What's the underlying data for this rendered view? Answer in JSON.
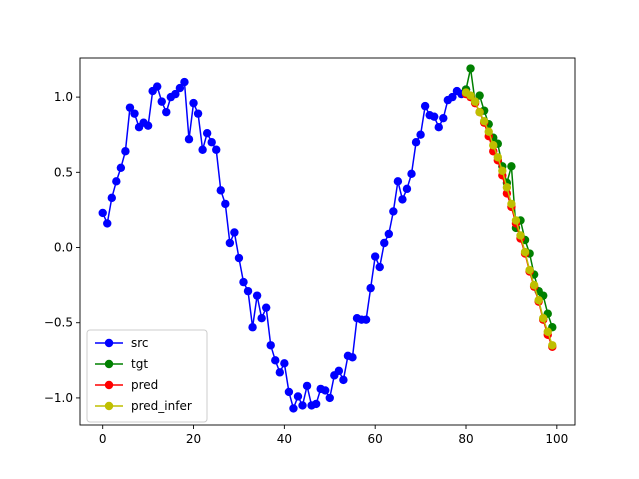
{
  "chart_data": {
    "type": "line",
    "title": "",
    "xlabel": "",
    "ylabel": "",
    "xlim": [
      -5,
      104
    ],
    "ylim": [
      -1.18,
      1.26
    ],
    "xticks": [
      0,
      20,
      40,
      60,
      80,
      100
    ],
    "yticks": [
      -1.0,
      -0.5,
      0.0,
      0.5,
      1.0
    ],
    "xtick_labels": [
      "0",
      "20",
      "40",
      "60",
      "80",
      "100"
    ],
    "ytick_labels": [
      "−1.0",
      "−0.5",
      "0.0",
      "0.5",
      "1.0"
    ],
    "grid": false,
    "legend_position": "lower-left",
    "series": [
      {
        "name": "src",
        "color": "#0000ff",
        "x": [
          0,
          1,
          2,
          3,
          4,
          5,
          6,
          7,
          8,
          9,
          10,
          11,
          12,
          13,
          14,
          15,
          16,
          17,
          18,
          19,
          20,
          21,
          22,
          23,
          24,
          25,
          26,
          27,
          28,
          29,
          30,
          31,
          32,
          33,
          34,
          35,
          36,
          37,
          38,
          39,
          40,
          41,
          42,
          43,
          44,
          45,
          46,
          47,
          48,
          49,
          50,
          51,
          52,
          53,
          54,
          55,
          56,
          57,
          58,
          59,
          60,
          61,
          62,
          63,
          64,
          65,
          66,
          67,
          68,
          69,
          70,
          71,
          72,
          73,
          74,
          75,
          76,
          77,
          78,
          79,
          80
        ],
        "y": [
          0.23,
          0.16,
          0.33,
          0.44,
          0.53,
          0.64,
          0.93,
          0.89,
          0.8,
          0.83,
          0.81,
          1.04,
          1.07,
          0.97,
          0.9,
          1.0,
          1.02,
          1.06,
          1.1,
          0.72,
          0.96,
          0.89,
          0.65,
          0.76,
          0.7,
          0.65,
          0.38,
          0.29,
          0.03,
          0.1,
          -0.07,
          -0.23,
          -0.29,
          -0.53,
          -0.32,
          -0.47,
          -0.4,
          -0.65,
          -0.75,
          -0.83,
          -0.77,
          -0.96,
          -1.07,
          -0.99,
          -1.05,
          -0.92,
          -1.05,
          -1.04,
          -0.94,
          -0.95,
          -1.0,
          -0.85,
          -0.82,
          -0.88,
          -0.72,
          -0.73,
          -0.47,
          -0.48,
          -0.48,
          -0.27,
          -0.06,
          -0.13,
          0.03,
          0.09,
          0.24,
          0.44,
          0.32,
          0.39,
          0.49,
          0.7,
          0.75,
          0.94,
          0.88,
          0.87,
          0.8,
          0.86,
          0.98,
          1.0,
          1.04,
          1.02,
          1.05
        ]
      },
      {
        "name": "tgt",
        "color": "#008000",
        "x": [
          80,
          81,
          82,
          83,
          84,
          85,
          86,
          87,
          88,
          89,
          90,
          91,
          92,
          93,
          94,
          95,
          96,
          97,
          98,
          99
        ],
        "y": [
          1.05,
          1.19,
          0.97,
          1.01,
          0.91,
          0.82,
          0.73,
          0.69,
          0.54,
          0.43,
          0.54,
          0.13,
          0.18,
          0.05,
          -0.04,
          -0.18,
          -0.29,
          -0.32,
          -0.44,
          -0.53
        ]
      },
      {
        "name": "pred",
        "color": "#ff0000",
        "x": [
          80,
          81,
          82,
          83,
          84,
          85,
          86,
          87,
          88,
          89,
          90,
          91,
          92,
          93,
          94,
          95,
          96,
          97,
          98,
          99
        ],
        "y": [
          1.02,
          1.0,
          0.96,
          0.9,
          0.83,
          0.74,
          0.64,
          0.58,
          0.48,
          0.36,
          0.27,
          0.16,
          0.06,
          -0.04,
          -0.16,
          -0.26,
          -0.36,
          -0.48,
          -0.58,
          -0.66
        ]
      },
      {
        "name": "pred_infer",
        "color": "#bfbf00",
        "x": [
          80,
          81,
          82,
          83,
          84,
          85,
          86,
          87,
          88,
          89,
          90,
          91,
          92,
          93,
          94,
          95,
          96,
          97,
          98,
          99
        ],
        "y": [
          1.03,
          1.01,
          0.97,
          0.9,
          0.84,
          0.77,
          0.68,
          0.6,
          0.51,
          0.4,
          0.29,
          0.18,
          0.08,
          -0.03,
          -0.15,
          -0.25,
          -0.35,
          -0.47,
          -0.56,
          -0.65
        ]
      }
    ]
  }
}
